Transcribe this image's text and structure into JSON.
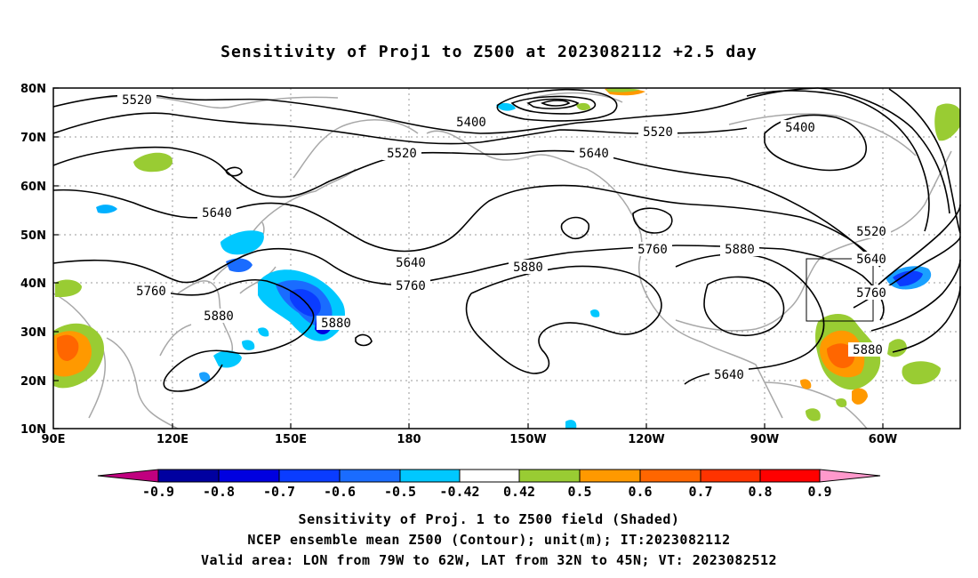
{
  "title": "Sensitivity of Proj1 to Z500 at 2023082112 +2.5 day",
  "map": {
    "lat_labels": [
      "80N",
      "70N",
      "60N",
      "50N",
      "40N",
      "30N",
      "20N",
      "10N"
    ],
    "lon_labels": [
      "90E",
      "120E",
      "150E",
      "180",
      "150W",
      "120W",
      "90W",
      "60W"
    ],
    "contour_labels": [
      "5520",
      "5400",
      "5520",
      "5400",
      "5640",
      "5520",
      "5640",
      "5520",
      "5640",
      "5640",
      "5760",
      "5760",
      "5880",
      "5880",
      "5760",
      "5880",
      "5640",
      "5760",
      "5880",
      "5880"
    ],
    "valid_box": {
      "lon_from": "79W",
      "lon_to": "62W",
      "lat_from": "32N",
      "lat_to": "45N"
    }
  },
  "colorbar": {
    "labels": [
      "-0.9",
      "-0.8",
      "-0.7",
      "-0.6",
      "-0.5",
      "-0.42",
      "0.42",
      "0.5",
      "0.6",
      "0.7",
      "0.8",
      "0.9"
    ],
    "colors": [
      "#c0007f",
      "#0000a0",
      "#0000e0",
      "#0a3cff",
      "#1a6cff",
      "#1aa0ff",
      "#00c8ff",
      "#ffffff",
      "#99cc33",
      "#ff9900",
      "#ff6600",
      "#ff3300",
      "#ff0000",
      "#ff99cc"
    ]
  },
  "footer": {
    "line1": "Sensitivity of Proj. 1 to Z500 field (Shaded)",
    "line2": "NCEP ensemble mean Z500 (Contour); unit(m); IT:2023082112",
    "line3": "Valid area: LON from 79W to 62W, LAT from 32N to 45N; VT: 2023082512"
  }
}
